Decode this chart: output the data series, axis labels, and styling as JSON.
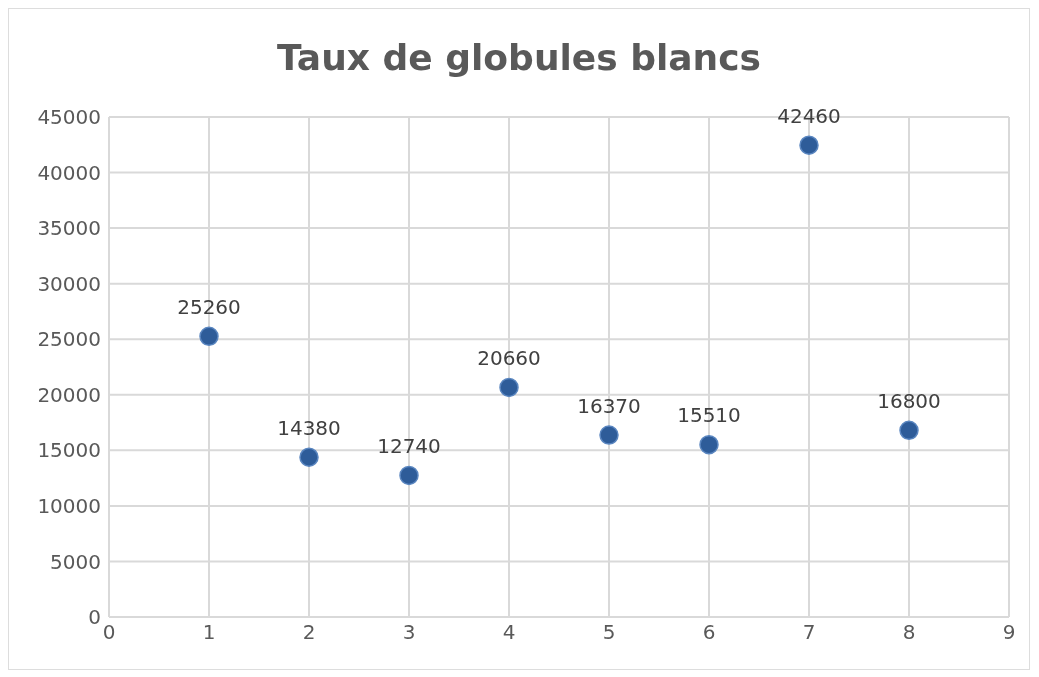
{
  "chart_data": {
    "type": "scatter",
    "title": "Taux de globules blancs",
    "x": [
      1,
      2,
      3,
      4,
      5,
      6,
      7,
      8
    ],
    "values": [
      25260,
      14380,
      12740,
      20660,
      16370,
      15510,
      42460,
      16800
    ],
    "color": "#2e5c99",
    "xlim": [
      0,
      9
    ],
    "xticks": [
      0,
      1,
      2,
      3,
      4,
      5,
      6,
      7,
      8,
      9
    ],
    "ylim": [
      0,
      45000
    ],
    "yticks": [
      0,
      5000,
      10000,
      15000,
      20000,
      25000,
      30000,
      35000,
      40000,
      45000
    ],
    "grid": true,
    "marker": "circle",
    "data_labels": true
  }
}
